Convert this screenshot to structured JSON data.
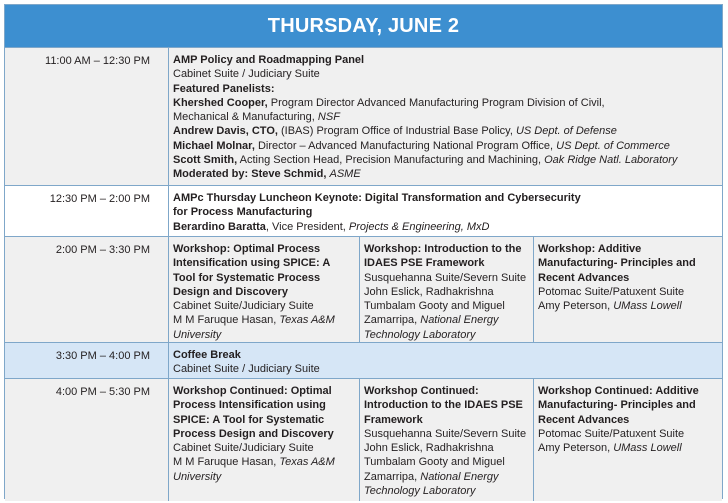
{
  "header": {
    "title": "THURSDAY, JUNE 2"
  },
  "rows": {
    "r1": {
      "time": "11:00 AM – 12:30 PM",
      "title": "AMP Policy and Roadmapping Panel",
      "location": "Cabinet Suite / Judiciary Suite",
      "panelists_label": "Featured Panelists:",
      "p1_name": "Khershed Cooper,",
      "p1_role_a": " Program Director Advanced Manufacturing Program Division of Civil,",
      "p1_role_b": "Mechanical & Manufacturing, ",
      "p1_org": "NSF",
      "p2_name": "Andrew Davis, CTO,",
      "p2_role": " (IBAS) Program Office of Industrial Base Policy, ",
      "p2_org": "US Dept. of Defense",
      "p3_name": "Michael Molnar,",
      "p3_role": " Director – Advanced Manufacturing National Program Office, ",
      "p3_org": "US Dept. of Commerce",
      "p4_name": "Scott Smith,",
      "p4_role": " Acting Section Head, Precision Manufacturing and Machining, ",
      "p4_org": "Oak Ridge Natl. Laboratory",
      "moderator_label": "Moderated by: Steve Schmid,",
      "moderator_org": "ASME"
    },
    "r2": {
      "time": "12:30 PM – 2:00 PM",
      "title_a": "AMPc Thursday Luncheon Keynote: Digital Transformation and Cybersecurity",
      "title_b": "for Process Manufacturing",
      "speaker_name": "Berardino Baratta",
      "speaker_role": ", Vice President, ",
      "speaker_org": "Projects & Engineering, MxD"
    },
    "r3": {
      "time": "2:00 PM – 3:30 PM",
      "w1": {
        "title_lines": [
          "Workshop: Optimal Process",
          "Intensification using SPICE: A",
          "Tool for Systematic Process",
          "Design and Discovery"
        ],
        "location": "Cabinet Suite/Judiciary Suite",
        "speaker": "M M Faruque Hasan, ",
        "org_a": "Texas A&M",
        "org_b": "University"
      },
      "w2": {
        "title_lines": [
          "Workshop: Introduction to the",
          "IDAES PSE Framework"
        ],
        "location": "Susquehanna Suite/Severn Suite",
        "speakers_a": "John Eslick, Radhakrishna",
        "speakers_b": "Tumbalam Gooty and Miguel",
        "speakers_c": "Zamarripa, ",
        "org_a": "National Energy",
        "org_b": "Technology Laboratory"
      },
      "w3": {
        "title_lines": [
          "Workshop: Additive",
          "Manufacturing- Principles and",
          "Recent Advances"
        ],
        "location": "Potomac Suite/Patuxent Suite",
        "speaker": "Amy Peterson, ",
        "org": "UMass Lowell"
      }
    },
    "r4": {
      "time": "3:30 PM – 4:00 PM",
      "title": "Coffee Break",
      "location": "Cabinet Suite / Judiciary Suite"
    },
    "r5": {
      "time": "4:00 PM – 5:30 PM",
      "w1": {
        "title_lines": [
          "Workshop Continued: Optimal",
          "Process Intensification using",
          "SPICE: A Tool for Systematic",
          "Process Design and Discovery"
        ],
        "location": "Cabinet Suite/Judiciary Suite",
        "speaker": "M M Faruque Hasan, ",
        "org_a": "Texas A&M",
        "org_b": "University"
      },
      "w2": {
        "title_lines": [
          "Workshop Continued:",
          "Introduction to the IDAES PSE",
          "Framework"
        ],
        "location": "Susquehanna Suite/Severn Suite",
        "speakers_a": "John Eslick, Radhakrishna",
        "speakers_b": "Tumbalam Gooty and Miguel",
        "speakers_c": "Zamarripa, ",
        "org_a": "National Energy",
        "org_b": "Technology Laboratory"
      },
      "w3": {
        "title_lines": [
          "Workshop Continued: Additive",
          "Manufacturing- Principles and",
          "Recent Advances"
        ],
        "location": "Potomac Suite/Patuxent Suite",
        "speaker": "Amy Peterson, ",
        "org": "UMass Lowell"
      }
    }
  }
}
